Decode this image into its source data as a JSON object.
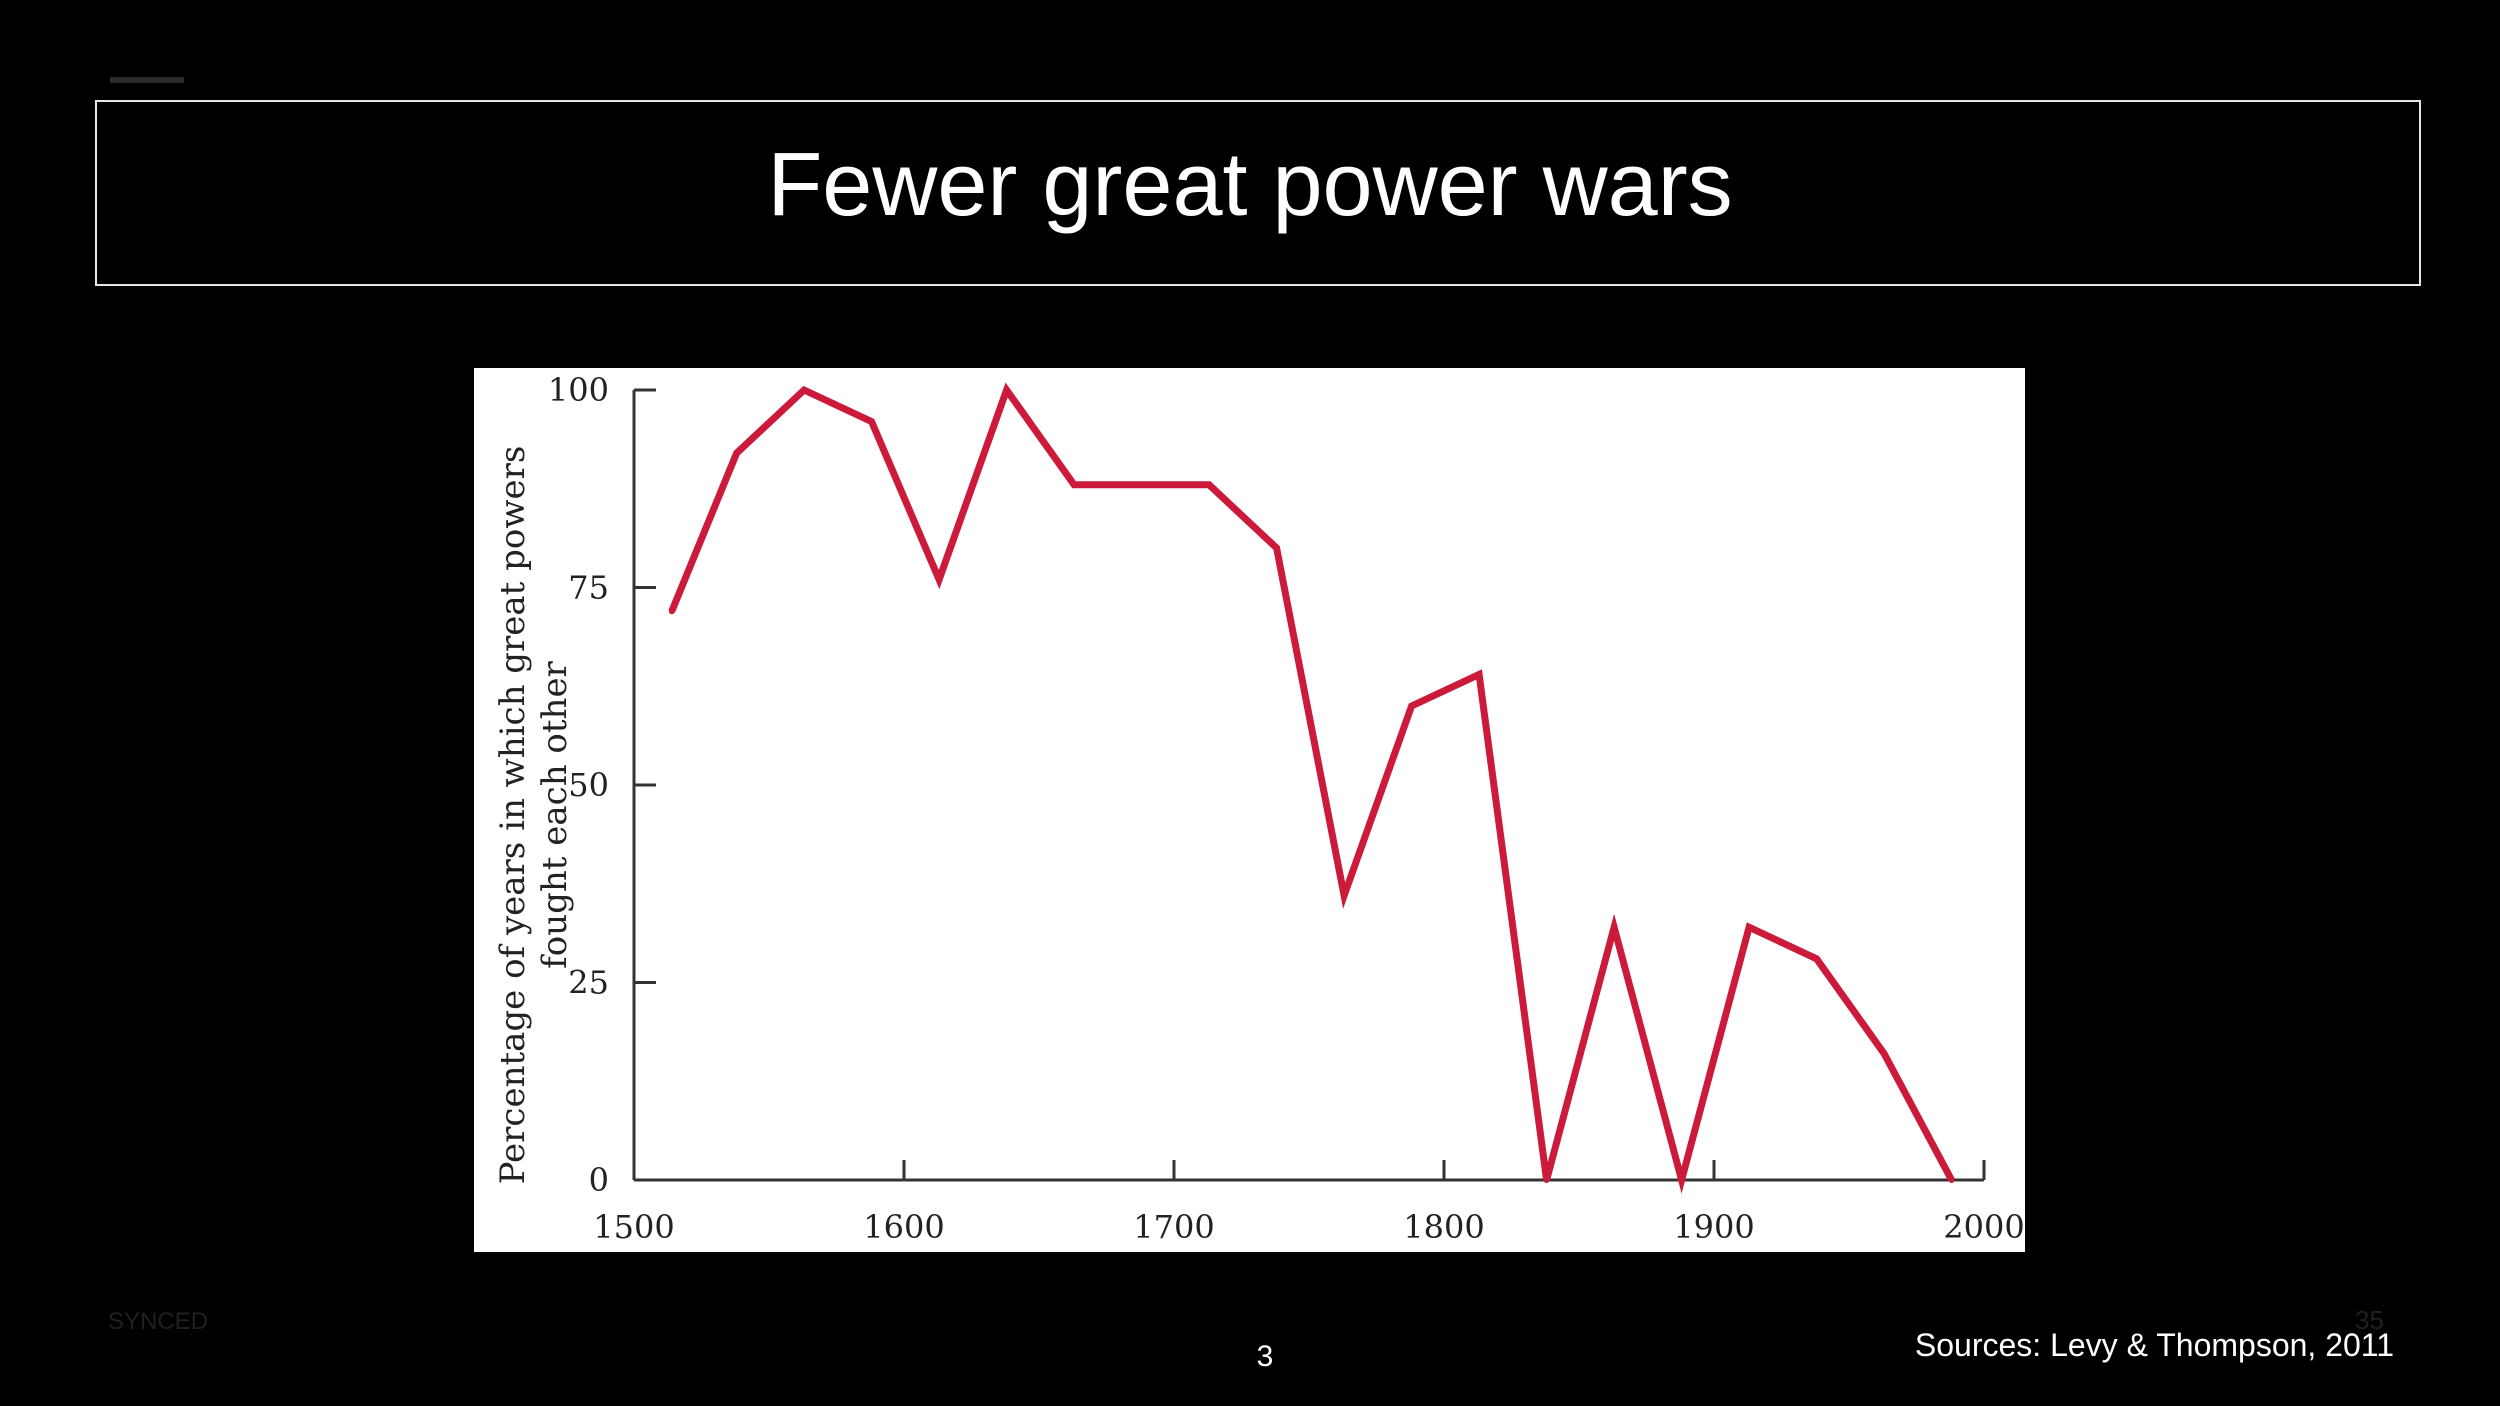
{
  "slide": {
    "title": "Fewer great power wars",
    "footer_left": "SYNCED",
    "footer_ghost": "35",
    "page_number": "3",
    "sources": "Sources: Levy & Thompson, 2011"
  },
  "colors": {
    "background": "#000000",
    "line": "#cc1a3a",
    "axis": "#333333"
  },
  "chart_data": {
    "type": "line",
    "title": "",
    "xlabel": "",
    "ylabel_lines": [
      "Percentage of years in which great powers",
      "fought each other"
    ],
    "xlim": [
      1500,
      2000
    ],
    "ylim": [
      0,
      100
    ],
    "x_ticks": [
      1500,
      1600,
      1700,
      1800,
      1900,
      2000
    ],
    "y_ticks": [
      0,
      25,
      50,
      75,
      100
    ],
    "grid": false,
    "series": [
      {
        "x": [
          1514,
          1538,
          1563,
          1588,
          1613,
          1638,
          1663,
          1688,
          1713,
          1738,
          1763,
          1788,
          1813,
          1838,
          1863,
          1888,
          1913,
          1938,
          1963,
          1988
        ],
        "y": [
          72,
          92,
          100,
          96,
          76,
          100,
          88,
          88,
          88,
          80,
          36,
          60,
          64,
          0,
          32,
          0,
          32,
          28,
          16,
          0
        ]
      }
    ]
  }
}
